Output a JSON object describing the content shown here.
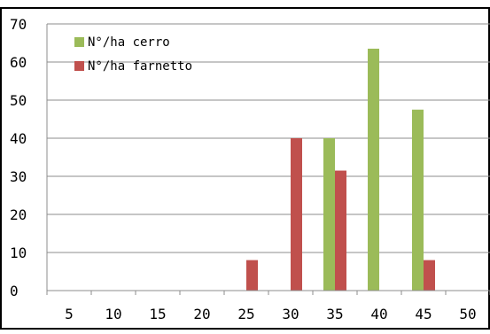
{
  "chart_data": {
    "type": "bar",
    "categories": [
      "5",
      "10",
      "15",
      "20",
      "25",
      "30",
      "35",
      "40",
      "45",
      "50"
    ],
    "series": [
      {
        "name": "N°/ha cerro",
        "color": "#9bbb59",
        "values": [
          0,
          0,
          0,
          0,
          0,
          0,
          40,
          63.5,
          47.5,
          0
        ]
      },
      {
        "name": "N°/ha farnetto",
        "color": "#c0504d",
        "values": [
          0,
          0,
          0,
          0,
          8,
          40,
          31.5,
          0,
          8,
          0
        ]
      }
    ],
    "ylim": [
      0,
      70
    ],
    "yticks": [
      "0",
      "10",
      "20",
      "30",
      "40",
      "50",
      "60",
      "70"
    ],
    "grid": true,
    "legend_position": "top-left",
    "title": "",
    "xlabel": "",
    "ylabel": ""
  }
}
